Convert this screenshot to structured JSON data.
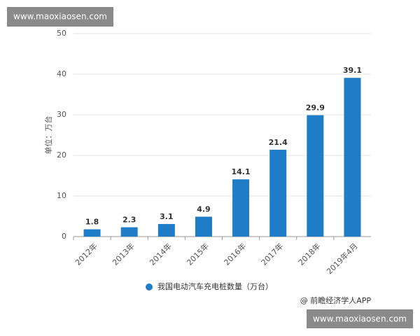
{
  "chart_data": {
    "type": "bar",
    "y_label": "单位：万台",
    "categories": [
      "2012年",
      "2013年",
      "2014年",
      "2015年",
      "2016年",
      "2017年",
      "2018年",
      "2019年4月"
    ],
    "series": [
      {
        "name": "我国电动汽车充电桩数量（万台）",
        "color": "#1f7dc8",
        "values": [
          1.8,
          2.3,
          3.1,
          4.9,
          14.1,
          21.4,
          29.9,
          39.1
        ]
      }
    ],
    "ylim": [
      0,
      50
    ],
    "yticks": [
      0,
      10,
      20,
      30,
      40,
      50
    ],
    "grid": true,
    "legend": "bottom"
  },
  "source": "@ 前瞻经济学人APP",
  "watermarks": [
    "www.maoxiaosen.com",
    "www.maoxiaosen.com"
  ]
}
